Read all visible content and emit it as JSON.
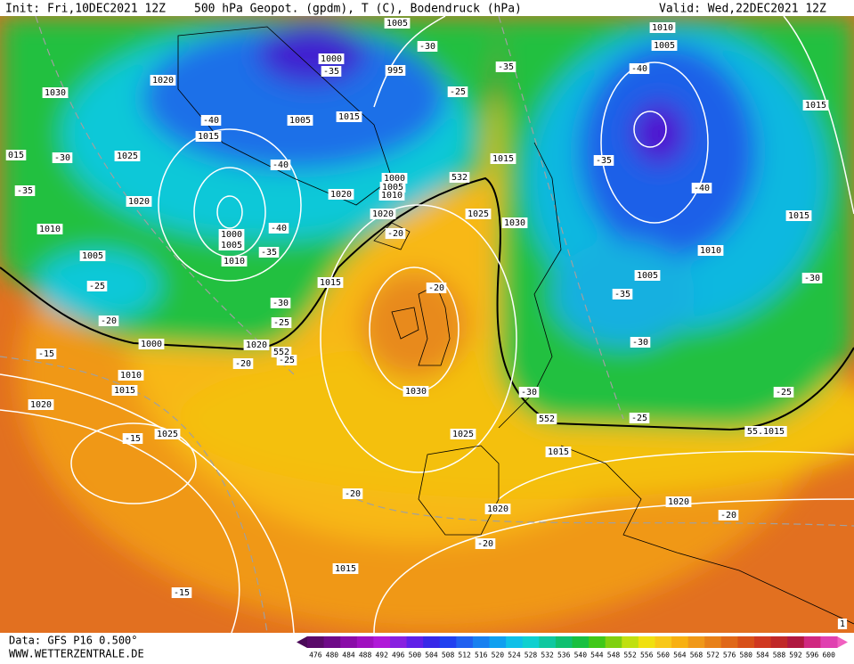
{
  "header": {
    "init": "Init: Fri,10DEC2021 12Z",
    "title": "500 hPa Geopot. (gpdm), T (C), Bodendruck (hPa)",
    "valid": "Valid: Wed,22DEC2021 12Z"
  },
  "map": {
    "labels": [
      "1005",
      "-30",
      "1010",
      "1005",
      "1000",
      "-35",
      "995",
      "-35",
      "1020",
      "1030",
      "-25",
      "-40",
      "1015",
      "1015",
      "1005",
      "-40",
      "1015",
      "1025",
      "015",
      "-30",
      "1015",
      "-35",
      "-40",
      "1000",
      "1005",
      "1010",
      "532",
      "-40",
      "-35",
      "1020",
      "1020",
      "1020",
      "1025",
      "1030",
      "1015",
      "1000",
      "1010",
      "-20",
      "-40",
      "1005",
      "1005",
      "-35",
      "1010",
      "1010",
      "-30",
      "1015",
      "1005",
      "-25",
      "-20",
      "-35",
      "-30",
      "-20",
      "-25",
      "1000",
      "1020",
      "552",
      "-30",
      "-15",
      "-20",
      "-25",
      "1010",
      "1015",
      "-30",
      "1030",
      "-25",
      "1020",
      "552",
      "-25",
      "55.1015",
      "-15",
      "1025",
      "1025",
      "1015",
      "-20",
      "1020",
      "1020",
      "-20",
      "-20",
      "1015",
      "-15",
      "1"
    ]
  },
  "colorbar": {
    "values": [
      476,
      480,
      484,
      488,
      492,
      496,
      500,
      504,
      508,
      512,
      516,
      520,
      524,
      528,
      532,
      536,
      540,
      544,
      548,
      552,
      556,
      560,
      564,
      568,
      572,
      576,
      580,
      584,
      588,
      592,
      596,
      600
    ]
  },
  "footer": {
    "data": "Data: GFS P16 0.500°",
    "site": "WWW.WETTERZENTRALE.DE"
  }
}
